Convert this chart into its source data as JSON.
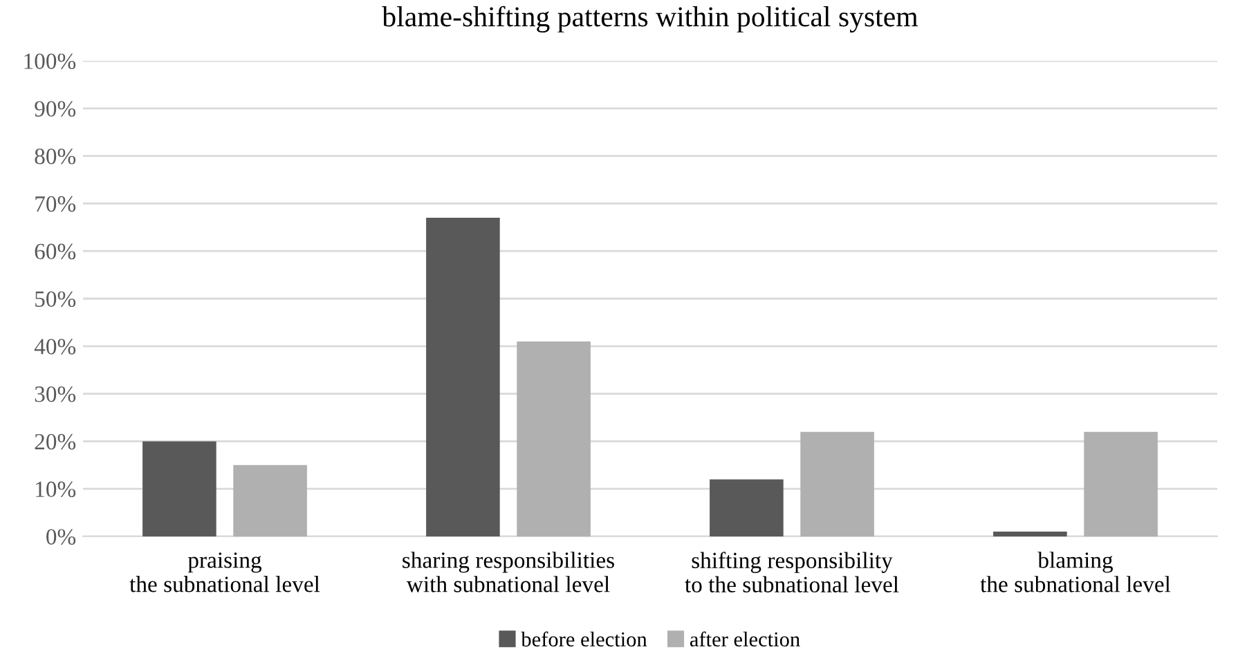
{
  "chart_data": {
    "type": "bar",
    "title": "blame-shifting patterns within political system",
    "categories": [
      "praising\nthe subnational level",
      "sharing responsibilities\nwith subnational level",
      "shifting responsibility\nto the subnational level",
      "blaming\nthe subnational level"
    ],
    "series": [
      {
        "name": "before election",
        "color": "#595959",
        "values": [
          20,
          67,
          12,
          1
        ]
      },
      {
        "name": "after election",
        "color": "#b0b0b0",
        "values": [
          15,
          41,
          22,
          22
        ]
      }
    ],
    "ylim": [
      0,
      100
    ],
    "yticks": [
      {
        "value": 0,
        "label": "0%"
      },
      {
        "value": 10,
        "label": "10%"
      },
      {
        "value": 20,
        "label": "20%"
      },
      {
        "value": 30,
        "label": "30%"
      },
      {
        "value": 40,
        "label": "40%"
      },
      {
        "value": 50,
        "label": "50%"
      },
      {
        "value": 60,
        "label": "60%"
      },
      {
        "value": 70,
        "label": "70%"
      },
      {
        "value": 80,
        "label": "80%"
      },
      {
        "value": 90,
        "label": "90%"
      },
      {
        "value": 100,
        "label": "100%"
      }
    ],
    "grid": "y",
    "legend": "bottom"
  }
}
